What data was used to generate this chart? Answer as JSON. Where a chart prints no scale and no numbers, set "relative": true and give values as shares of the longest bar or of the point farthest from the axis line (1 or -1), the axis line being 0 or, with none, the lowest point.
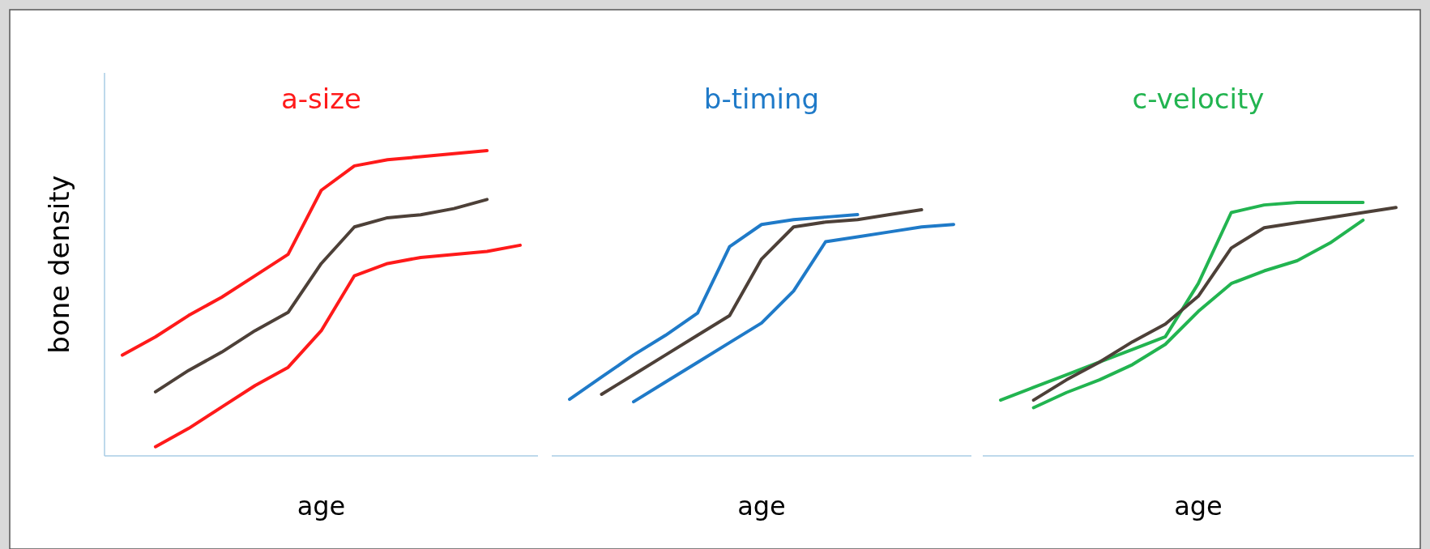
{
  "chart_data": [
    {
      "type": "line",
      "title": "a-size",
      "xlabel": "age",
      "ylabel": "bone density",
      "relative": true,
      "categories": [
        null,
        null,
        null,
        null,
        null,
        null,
        null,
        null,
        null,
        null,
        null,
        null,
        null
      ],
      "series": [
        {
          "color": "#ff1a1a",
          "values": [
            0.33,
            0.39,
            0.46,
            0.52,
            0.59,
            0.66,
            0.87,
            0.95,
            0.97,
            0.98,
            0.99,
            1.0,
            null
          ]
        },
        {
          "color": "#4d4038",
          "values": [
            null,
            0.21,
            0.28,
            0.34,
            0.41,
            0.47,
            0.63,
            0.75,
            0.78,
            0.79,
            0.81,
            0.84,
            null
          ]
        },
        {
          "color": "#ff1a1a",
          "values": [
            null,
            0.03,
            0.09,
            0.16,
            0.23,
            0.29,
            0.41,
            0.59,
            0.63,
            0.65,
            0.66,
            0.67,
            0.69
          ]
        }
      ]
    },
    {
      "type": "line",
      "title": "b-timing",
      "xlabel": "age",
      "relative": true,
      "categories": [
        null,
        null,
        null,
        null,
        null,
        null,
        null,
        null,
        null,
        null,
        null,
        null,
        null
      ],
      "series": [
        {
          "color": "#1f7ac8",
          "values": [
            null,
            null,
            0.22,
            0.3,
            0.38,
            0.46,
            0.54,
            0.67,
            0.87,
            0.89,
            0.91,
            0.93,
            0.94
          ]
        },
        {
          "color": "#4d4038",
          "values": [
            null,
            0.25,
            0.33,
            0.41,
            0.49,
            0.57,
            0.8,
            0.93,
            0.95,
            0.96,
            0.98,
            1.0,
            null
          ]
        },
        {
          "color": "#1f7ac8",
          "values": [
            0.23,
            0.32,
            0.41,
            0.49,
            0.58,
            0.85,
            0.94,
            0.96,
            0.97,
            0.98,
            null,
            null,
            null
          ]
        }
      ]
    },
    {
      "type": "line",
      "title": "c-velocity",
      "xlabel": "age",
      "relative": true,
      "categories": [
        null,
        null,
        null,
        null,
        null,
        null,
        null,
        null,
        null,
        null,
        null,
        null,
        null
      ],
      "series": [
        {
          "color": "#22b450",
          "values": [
            0.22,
            0.27,
            0.32,
            0.37,
            0.42,
            0.47,
            0.68,
            0.96,
            0.99,
            1.0,
            1.0,
            1.0,
            null
          ]
        },
        {
          "color": "#4d4038",
          "values": [
            null,
            0.22,
            0.3,
            0.37,
            0.45,
            0.52,
            0.63,
            0.82,
            0.9,
            0.92,
            0.94,
            0.96,
            0.98
          ]
        },
        {
          "color": "#22b450",
          "values": [
            null,
            0.19,
            0.25,
            0.3,
            0.36,
            0.44,
            0.57,
            0.68,
            0.73,
            0.77,
            0.84,
            0.93,
            null
          ]
        }
      ]
    }
  ]
}
